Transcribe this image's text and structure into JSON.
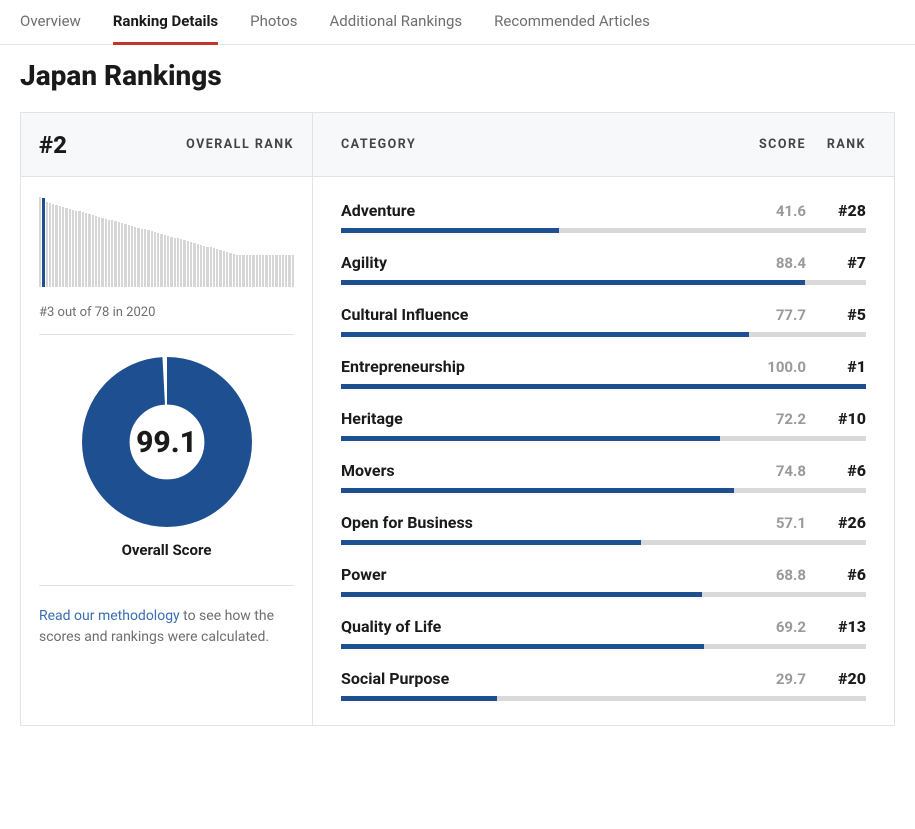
{
  "colors": {
    "accent_red": "#c4342d",
    "brand_blue": "#1d4f91",
    "bar_track": "#d9d9d9",
    "histo_gray": "#d6d6d6",
    "text_muted": "#6e6e6e",
    "header_bg": "#f6f8fa",
    "border": "#e3e3e3",
    "link": "#3a6db3"
  },
  "tabs": [
    {
      "label": "Overview",
      "active": false
    },
    {
      "label": "Ranking Details",
      "active": true
    },
    {
      "label": "Photos",
      "active": false
    },
    {
      "label": "Additional Rankings",
      "active": false
    },
    {
      "label": "Recommended Articles",
      "active": false
    }
  ],
  "page_title": "Japan Rankings",
  "overall": {
    "rank_display": "#2",
    "rank_label": "OVERALL RANK",
    "histogram": {
      "highlight_index": 1,
      "values": [
        100,
        99,
        94,
        93,
        92,
        91,
        90,
        89,
        88,
        87,
        86,
        85,
        84,
        83,
        82,
        81,
        80,
        79,
        78,
        77,
        76,
        75,
        74,
        73,
        72,
        71,
        70,
        69,
        68,
        67,
        66,
        65,
        64,
        63,
        62,
        61,
        60,
        59,
        58,
        57,
        56,
        55,
        54,
        53,
        52,
        51,
        50,
        49,
        48,
        47,
        46,
        45,
        44,
        43,
        42,
        41,
        40,
        39,
        38,
        37,
        36,
        36,
        36,
        36,
        36,
        36,
        36,
        36,
        36,
        36,
        36,
        36,
        36,
        36,
        36,
        36,
        36,
        36
      ]
    },
    "prior_note": "#3 out of 78 in 2020",
    "score": 99.1,
    "score_label": "Overall Score",
    "donut": {
      "stroke_width": 28,
      "ring_color": "#1d4f91",
      "track_color": "#ffffff",
      "percent": 99.1
    },
    "methodology_link_text": "Read our methodology",
    "methodology_rest": " to see how the scores and rankings were calculated."
  },
  "table": {
    "headers": {
      "category": "CATEGORY",
      "score": "SCORE",
      "rank": "RANK"
    },
    "bar_max": 100,
    "bar_color": "#1d4f91",
    "bar_track_color": "#d9d9d9",
    "rows": [
      {
        "name": "Adventure",
        "score": 41.6,
        "rank": "#28"
      },
      {
        "name": "Agility",
        "score": 88.4,
        "rank": "#7"
      },
      {
        "name": "Cultural Influence",
        "score": 77.7,
        "rank": "#5"
      },
      {
        "name": "Entrepreneurship",
        "score": 100.0,
        "rank": "#1"
      },
      {
        "name": "Heritage",
        "score": 72.2,
        "rank": "#10"
      },
      {
        "name": "Movers",
        "score": 74.8,
        "rank": "#6"
      },
      {
        "name": "Open for Business",
        "score": 57.1,
        "rank": "#26"
      },
      {
        "name": "Power",
        "score": 68.8,
        "rank": "#6"
      },
      {
        "name": "Quality of Life",
        "score": 69.2,
        "rank": "#13"
      },
      {
        "name": "Social Purpose",
        "score": 29.7,
        "rank": "#20"
      }
    ]
  }
}
